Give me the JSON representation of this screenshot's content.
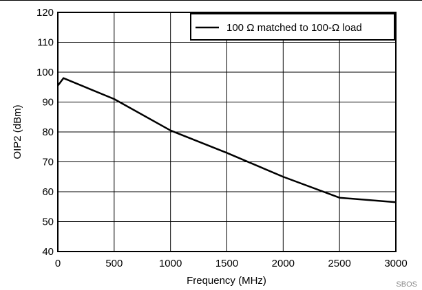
{
  "chart_data": {
    "type": "line",
    "title": "",
    "xlabel": "Frequency (MHz)",
    "ylabel": "OIP2 (dBm)",
    "xlim": [
      0,
      3000
    ],
    "ylim": [
      40,
      120
    ],
    "xticks": [
      0,
      500,
      1000,
      1500,
      2000,
      2500,
      3000
    ],
    "yticks": [
      40,
      50,
      60,
      70,
      80,
      90,
      100,
      110,
      120
    ],
    "grid": true,
    "legend_position": "top-right",
    "series": [
      {
        "name": "100 Ω matched to 100-Ω load",
        "color": "#000000",
        "x": [
          0,
          50,
          500,
          1000,
          1500,
          2000,
          2500,
          3000
        ],
        "y": [
          95.5,
          98,
          91,
          80.5,
          73,
          65,
          58,
          56.5
        ]
      }
    ]
  },
  "footer": {
    "code": "SBOS"
  }
}
